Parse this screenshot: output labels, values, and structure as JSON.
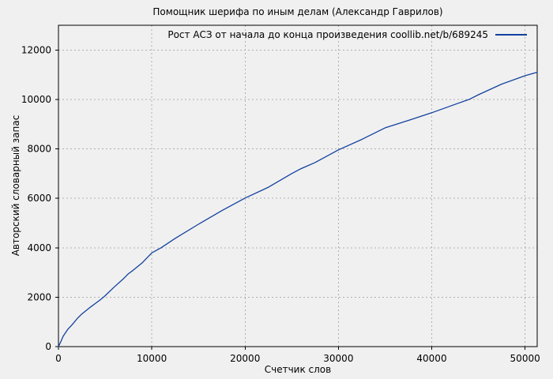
{
  "chart_data": {
    "type": "line",
    "title": "Помощник шерифа по иным делам (Александр Гаврилов)",
    "xlabel": "Счетчик слов",
    "ylabel": "Авторский словарный запас",
    "legend_position": "top-right-inside",
    "grid": true,
    "xlim": [
      0,
      51300
    ],
    "ylim": [
      0,
      13000
    ],
    "xticks": [
      0,
      10000,
      20000,
      30000,
      40000,
      50000
    ],
    "yticks": [
      0,
      2000,
      4000,
      6000,
      8000,
      10000,
      12000
    ],
    "series": [
      {
        "name": "Рост АСЗ от начала до конца произведения coollib.net/b/689245",
        "color": "#12419f",
        "x": [
          0,
          250,
          500,
          1000,
          1500,
          2000,
          2500,
          3000,
          3500,
          4000,
          4500,
          5000,
          6000,
          7000,
          7500,
          8000,
          9000,
          10000,
          11000,
          12500,
          15000,
          17500,
          20000,
          22500,
          25000,
          26000,
          27500,
          30000,
          32500,
          35000,
          37500,
          40000,
          42500,
          44000,
          45000,
          47500,
          50000,
          51300
        ],
        "y": [
          0,
          200,
          420,
          700,
          900,
          1130,
          1320,
          1470,
          1620,
          1760,
          1900,
          2060,
          2420,
          2760,
          2950,
          3090,
          3400,
          3790,
          4000,
          4380,
          4950,
          5500,
          6010,
          6450,
          7000,
          7200,
          7450,
          7960,
          8380,
          8850,
          9150,
          9460,
          9800,
          10000,
          10190,
          10620,
          10960,
          11100
        ]
      }
    ]
  },
  "colors": {
    "background": "#f0f0f0",
    "border": "#000000",
    "grid": "#b0b0b0",
    "accent": "#12419f",
    "text": "#000000"
  }
}
